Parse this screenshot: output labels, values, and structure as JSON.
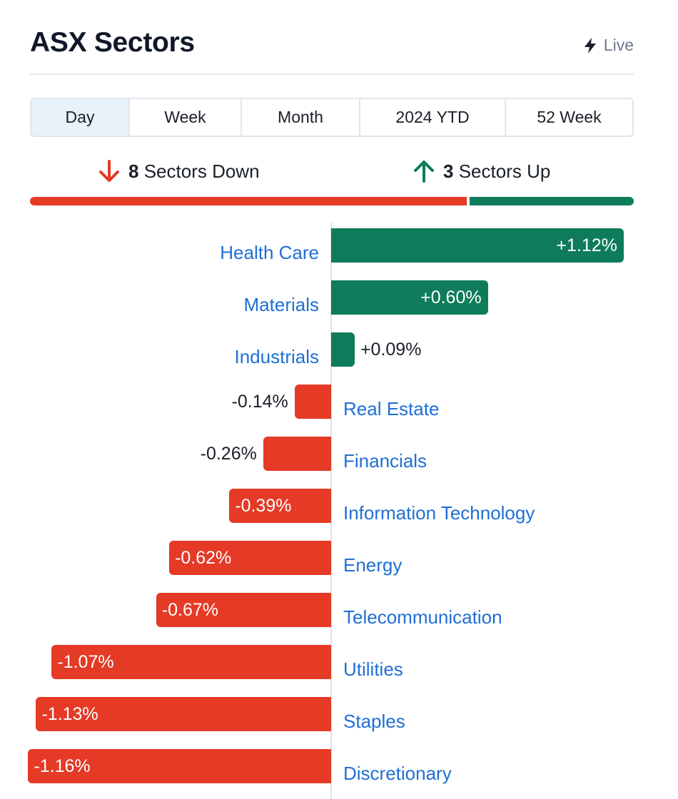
{
  "header": {
    "title": "ASX Sectors",
    "live_label": "Live",
    "live_icon": "lightning-bolt-icon"
  },
  "tabs": [
    {
      "label": "Day",
      "active": true
    },
    {
      "label": "Week",
      "active": false
    },
    {
      "label": "Month",
      "active": false
    },
    {
      "label": "2024 YTD",
      "active": false
    },
    {
      "label": "52 Week",
      "active": false
    }
  ],
  "summary": {
    "down_count": "8",
    "down_label": "Sectors Down",
    "down_icon": "arrow-down-icon",
    "up_count": "3",
    "up_label": "Sectors Up",
    "up_icon": "arrow-up-icon"
  },
  "colors": {
    "up": "#0e7c5a",
    "down": "#e43a26",
    "link": "#1f6fd4"
  },
  "chart_data": {
    "type": "bar",
    "orientation": "horizontal-diverging",
    "categories": [
      "Health Care",
      "Materials",
      "Industrials",
      "Real Estate",
      "Financials",
      "Information Technology",
      "Energy",
      "Telecommunication",
      "Utilities",
      "Staples",
      "Discretionary"
    ],
    "values": [
      1.12,
      0.6,
      0.09,
      -0.14,
      -0.26,
      -0.39,
      -0.62,
      -0.67,
      -1.07,
      -1.13,
      -1.16
    ],
    "labels": [
      "+1.12%",
      "+0.60%",
      "+0.09%",
      "-0.14%",
      "-0.26%",
      "-0.39%",
      "-0.62%",
      "-0.67%",
      "-1.07%",
      "-1.13%",
      "-1.16%"
    ],
    "unit": "%"
  }
}
